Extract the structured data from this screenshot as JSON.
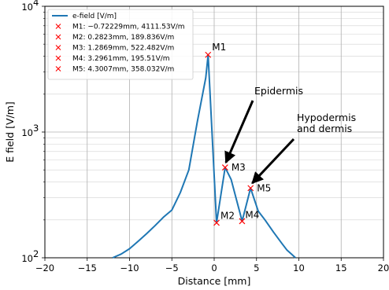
{
  "chart_data": {
    "type": "line",
    "xlabel": "Distance [mm]",
    "ylabel": "E field [V/m]",
    "xlim": [
      -20,
      20
    ],
    "ylim": [
      100,
      10000
    ],
    "yscale": "log",
    "grid": "major and minor",
    "x_ticks": [
      "−20",
      "−15",
      "−10",
      "−5",
      "0",
      "5",
      "10",
      "15",
      "20"
    ],
    "y_ticks": [
      "10",
      "10",
      "10"
    ],
    "y_tick_exponents": [
      "2",
      "3",
      "4"
    ],
    "legend_position": "top-left",
    "series": [
      {
        "name": "e-field [V/m]",
        "color": "#1f77b4",
        "x": [
          -12,
          -11,
          -10,
          -9,
          -8,
          -7,
          -6,
          -5,
          -4,
          -3,
          -2,
          -1,
          -0.72,
          0.28,
          1.29,
          2,
          3.3,
          4.3,
          5.2,
          6,
          7,
          8,
          8.6,
          9.2,
          9.6
        ],
        "y": [
          100,
          107,
          118,
          135,
          155,
          180,
          210,
          240,
          330,
          500,
          1200,
          2700,
          4111.53,
          189.836,
          522.482,
          420,
          195.51,
          358.032,
          235,
          200,
          160,
          130,
          115,
          106,
          100
        ]
      }
    ],
    "markers": [
      {
        "name": "M1",
        "x": -0.72229,
        "y": 4111.53,
        "legend": "M1: −0.72229mm, 4111.53V/m",
        "label": "M1"
      },
      {
        "name": "M2",
        "x": 0.2823,
        "y": 189.836,
        "legend": "M2: 0.2823mm, 189.836V/m",
        "label": "M2"
      },
      {
        "name": "M3",
        "x": 1.2869,
        "y": 522.482,
        "legend": "M3: 1.2869mm, 522.482V/m",
        "label": "M3"
      },
      {
        "name": "M4",
        "x": 3.2961,
        "y": 195.51,
        "legend": "M4: 3.2961mm, 195.51V/m",
        "label": "M4"
      },
      {
        "name": "M5",
        "x": 4.3007,
        "y": 358.032,
        "legend": "M5: 4.3007mm, 358.032V/m",
        "label": "M5"
      }
    ],
    "marker_color": "#ff0000",
    "annotations": [
      {
        "lines": [
          "Epidermis"
        ],
        "points_to": [
          1.29,
          540
        ]
      },
      {
        "lines": [
          "Hypodermis",
          "and dermis"
        ],
        "points_to": [
          4.4,
          370
        ]
      }
    ]
  }
}
